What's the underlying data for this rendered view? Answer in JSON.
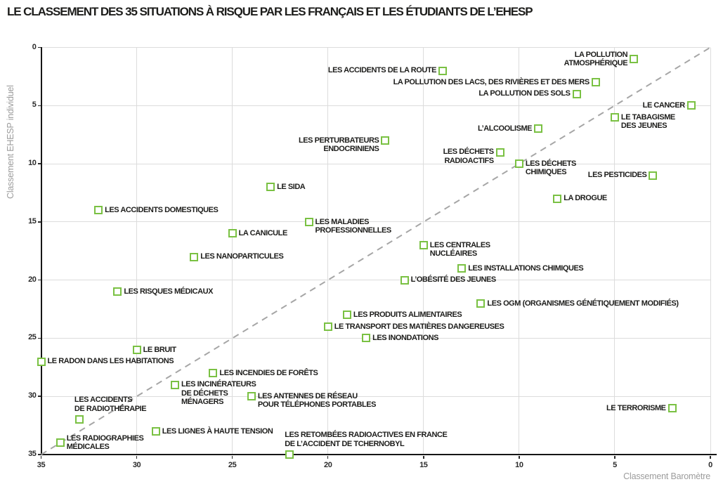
{
  "chart_data": {
    "type": "scatter",
    "title": "LE CLASSEMENT DES 35 SITUATIONS À RISQUE PAR LES FRANÇAIS ET LES ÉTUDIANTS DE L’EHESP",
    "x_axis": {
      "label": "Classement Baromètre",
      "ticks": [
        35,
        30,
        25,
        20,
        15,
        10,
        5,
        0
      ],
      "range": [
        35,
        0
      ],
      "reversed": true
    },
    "y_axis": {
      "label": "Classement EHESP individuel",
      "ticks": [
        0,
        5,
        10,
        15,
        20,
        25,
        30,
        35
      ],
      "range": [
        0,
        35
      ],
      "inverted": true
    },
    "grid": true,
    "identity_line": {
      "style": "dashed",
      "color": "#a6a6a6",
      "from_barometre": 35,
      "from_ehesp": 35,
      "to_barometre": 0,
      "to_ehesp": 0
    },
    "marker": {
      "shape": "square-outline",
      "color": "#7ac143",
      "fill": "#ffffff"
    },
    "points": [
      {
        "label": "LE CANCER",
        "barometre": 1,
        "ehesp": 5,
        "label_lines": [
          "LE CANCER"
        ],
        "label_side": "left",
        "label_valign": "center"
      },
      {
        "label": "LE TERRORISME",
        "barometre": 2,
        "ehesp": 31,
        "label_lines": [
          "LE TERRORISME"
        ],
        "label_side": "left",
        "label_valign": "center"
      },
      {
        "label": "LES PESTICIDES",
        "barometre": 3,
        "ehesp": 11,
        "label_lines": [
          "LES PESTICIDES"
        ],
        "label_side": "left",
        "label_valign": "center"
      },
      {
        "label": "LA POLLUTION ATMOSPHÉRIQUE",
        "barometre": 4,
        "ehesp": 1,
        "label_lines": [
          "LA POLLUTION",
          "ATMOSPHÉRIQUE"
        ],
        "label_side": "left",
        "label_valign": "center"
      },
      {
        "label": "LE TABAGISME DES JEUNES",
        "barometre": 5,
        "ehesp": 6,
        "label_lines": [
          "LE TABAGISME",
          "DES JEUNES"
        ],
        "label_side": "right",
        "label_valign": "top"
      },
      {
        "label": "LA POLLUTION DES LACS, DES RIVIÈRES ET DES MERS",
        "barometre": 6,
        "ehesp": 3,
        "label_lines": [
          "LA POLLUTION DES LACS, DES RIVIÈRES ET DES MERS"
        ],
        "label_side": "left",
        "label_valign": "center"
      },
      {
        "label": "LA POLLUTION DES SOLS",
        "barometre": 7,
        "ehesp": 4,
        "label_lines": [
          "LA POLLUTION DES SOLS"
        ],
        "label_side": "left",
        "label_valign": "center"
      },
      {
        "label": "LA DROGUE",
        "barometre": 8,
        "ehesp": 13,
        "label_lines": [
          "LA DROGUE"
        ],
        "label_side": "right",
        "label_valign": "center"
      },
      {
        "label": "L’ALCOOLISME",
        "barometre": 9,
        "ehesp": 7,
        "label_lines": [
          "L’ALCOOLISME"
        ],
        "label_side": "left",
        "label_valign": "center"
      },
      {
        "label": "LES DÉCHETS CHIMIQUES",
        "barometre": 10,
        "ehesp": 10,
        "label_lines": [
          "LES DÉCHETS",
          "CHIMIQUES"
        ],
        "label_side": "right",
        "label_valign": "top"
      },
      {
        "label": "LES DÉCHETS RADIOACTIFS",
        "barometre": 11,
        "ehesp": 9,
        "label_lines": [
          "LES DÉCHETS",
          "RADIOACTIFS"
        ],
        "label_side": "left",
        "label_valign": "top"
      },
      {
        "label": "LES OGM (ORGANISMES GÉNÉTIQUEMENT MODIFIÉS)",
        "barometre": 12,
        "ehesp": 22,
        "label_lines": [
          "LES OGM (ORGANISMES GÉNÉTIQUEMENT MODIFIÉS)"
        ],
        "label_side": "right",
        "label_valign": "center"
      },
      {
        "label": "LES INSTALLATIONS CHIMIQUES",
        "barometre": 13,
        "ehesp": 19,
        "label_lines": [
          "LES INSTALLATIONS CHIMIQUES"
        ],
        "label_side": "right",
        "label_valign": "center"
      },
      {
        "label": "LES ACCIDENTS DE LA ROUTE",
        "barometre": 14,
        "ehesp": 2,
        "label_lines": [
          "LES ACCIDENTS DE LA ROUTE"
        ],
        "label_side": "left",
        "label_valign": "center"
      },
      {
        "label": "LES CENTRALES NUCLÉAIRES",
        "barometre": 15,
        "ehesp": 17,
        "label_lines": [
          "LES CENTRALES",
          "NUCLÉAIRES"
        ],
        "label_side": "right",
        "label_valign": "top"
      },
      {
        "label": "L’OBÉSITÉ DES JEUNES",
        "barometre": 16,
        "ehesp": 20,
        "label_lines": [
          "L’OBÉSITÉ DES JEUNES"
        ],
        "label_side": "right",
        "label_valign": "center"
      },
      {
        "label": "LES PERTURBATEURS ENDOCRINIENS",
        "barometre": 17,
        "ehesp": 8,
        "label_lines": [
          "LES PERTURBATEURS",
          "ENDOCRINIENS"
        ],
        "label_side": "left",
        "label_valign": "top"
      },
      {
        "label": "LES INONDATIONS",
        "barometre": 18,
        "ehesp": 25,
        "label_lines": [
          "LES INONDATIONS"
        ],
        "label_side": "right",
        "label_valign": "center"
      },
      {
        "label": "LES PRODUITS ALIMENTAIRES",
        "barometre": 19,
        "ehesp": 23,
        "label_lines": [
          "LES PRODUITS ALIMENTAIRES"
        ],
        "label_side": "right",
        "label_valign": "center"
      },
      {
        "label": "LE TRANSPORT DES MATIÈRES DANGEREUSES",
        "barometre": 20,
        "ehesp": 24,
        "label_lines": [
          "LE TRANSPORT DES MATIÈRES DANGEREUSES"
        ],
        "label_side": "right",
        "label_valign": "center"
      },
      {
        "label": "LES MALADIES PROFESSIONNELLES",
        "barometre": 21,
        "ehesp": 15,
        "label_lines": [
          "LES MALADIES",
          "PROFESSIONNELLES"
        ],
        "label_side": "right",
        "label_valign": "top"
      },
      {
        "label": "LES RETOMBÉES RADIOACTIVES EN FRANCE DE L’ACCIDENT DE TCHERNOBYL",
        "barometre": 22,
        "ehesp": 35,
        "label_lines": [
          "LES RETOMBÉES RADIOACTIVES EN FRANCE",
          "DE L’ACCIDENT DE TCHERNOBYL"
        ],
        "label_side": "above",
        "label_valign": "bottom"
      },
      {
        "label": "LE SIDA",
        "barometre": 23,
        "ehesp": 12,
        "label_lines": [
          "LE SIDA"
        ],
        "label_side": "right",
        "label_valign": "center"
      },
      {
        "label": "LES ANTENNES DE RÉSEAU POUR TÉLÉPHONES PORTABLES",
        "barometre": 24,
        "ehesp": 30,
        "label_lines": [
          "LES ANTENNES DE RÉSEAU",
          "POUR TÉLÉPHONES PORTABLES"
        ],
        "label_side": "right",
        "label_valign": "top"
      },
      {
        "label": "LA CANICULE",
        "barometre": 25,
        "ehesp": 16,
        "label_lines": [
          "LA CANICULE"
        ],
        "label_side": "right",
        "label_valign": "center"
      },
      {
        "label": "LES INCENDIES DE FORÊTS",
        "barometre": 26,
        "ehesp": 28,
        "label_lines": [
          "LES INCENDIES DE FORÊTS"
        ],
        "label_side": "right",
        "label_valign": "center"
      },
      {
        "label": "LES NANOPARTICULES",
        "barometre": 27,
        "ehesp": 18,
        "label_lines": [
          "LES NANOPARTICULES"
        ],
        "label_side": "right",
        "label_valign": "center"
      },
      {
        "label": "LES INCINÉRATEURS DE DÉCHETS MÉNAGERS",
        "barometre": 28,
        "ehesp": 29,
        "label_lines": [
          "LES INCINÉRATEURS",
          "DE DÉCHETS",
          "MÉNAGERS"
        ],
        "label_side": "right",
        "label_valign": "top"
      },
      {
        "label": "LES LIGNES À HAUTE TENSION",
        "barometre": 29,
        "ehesp": 33,
        "label_lines": [
          "LES LIGNES À HAUTE TENSION"
        ],
        "label_side": "right",
        "label_valign": "center"
      },
      {
        "label": "LE BRUIT",
        "barometre": 30,
        "ehesp": 26,
        "label_lines": [
          "LE BRUIT"
        ],
        "label_side": "right",
        "label_valign": "center"
      },
      {
        "label": "LES RISQUES MÉDICAUX",
        "barometre": 31,
        "ehesp": 21,
        "label_lines": [
          "LES RISQUES MÉDICAUX"
        ],
        "label_side": "right",
        "label_valign": "center"
      },
      {
        "label": "LES ACCIDENTS DOMESTIQUES",
        "barometre": 32,
        "ehesp": 14,
        "label_lines": [
          "LES ACCIDENTS DOMESTIQUES"
        ],
        "label_side": "right",
        "label_valign": "center"
      },
      {
        "label": "LES ACCIDENTS DE RADIOTHÉRAPIE",
        "barometre": 33,
        "ehesp": 32,
        "label_lines": [
          "LES ACCIDENTS",
          "DE RADIOTHÉRAPIE"
        ],
        "label_side": "above",
        "label_valign": "bottom"
      },
      {
        "label": "LES RADIOGRAPHIES MÉDICALES",
        "barometre": 34,
        "ehesp": 34,
        "label_lines": [
          "LES RADIOGRAPHIES",
          "MÉDICALES"
        ],
        "label_side": "right",
        "label_valign": "center"
      },
      {
        "label": "LE RADON DANS LES HABITATIONS",
        "barometre": 35,
        "ehesp": 27,
        "label_lines": [
          "LE RADON DANS LES HABITATIONS"
        ],
        "label_side": "right",
        "label_valign": "center"
      }
    ]
  },
  "colors": {
    "marker_green": "#7ac143",
    "grid": "#dcdcdc",
    "axis": "#161616",
    "identity_line": "#a6a6a6",
    "axis_title": "#9c9c9c",
    "text": "#1d1d1b"
  }
}
